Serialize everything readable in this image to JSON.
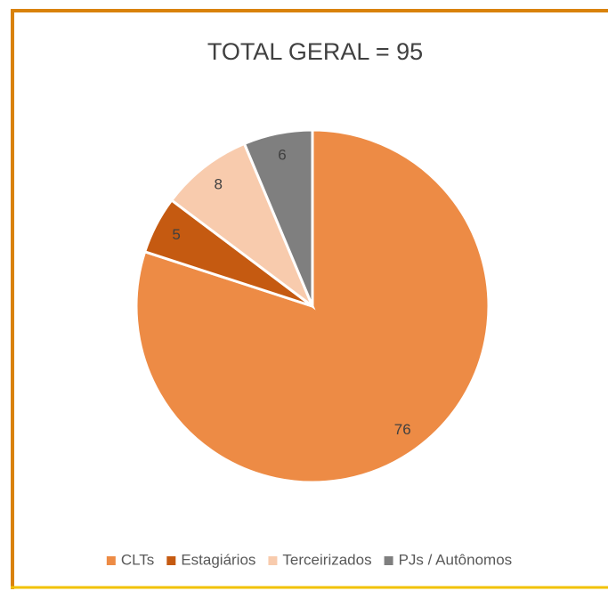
{
  "chart_data": {
    "type": "pie",
    "title": "TOTAL GERAL = 95",
    "categories": [
      "CLTs",
      "Estagiários",
      "Terceirizados",
      "PJs / Autônomos"
    ],
    "values": [
      76,
      5,
      8,
      6
    ],
    "colors": [
      "#ed8b45",
      "#c55a11",
      "#f8cbad",
      "#7f7f7f"
    ],
    "legend": "bottom"
  }
}
